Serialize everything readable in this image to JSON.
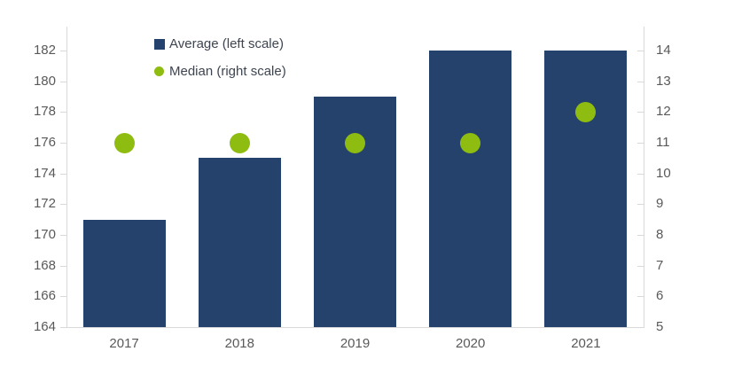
{
  "chart_data": {
    "type": "bar",
    "categories": [
      "2017",
      "2018",
      "2019",
      "2020",
      "2021"
    ],
    "series": [
      {
        "name": "Average (left scale)",
        "type": "bar",
        "axis": "left",
        "values": [
          171,
          175,
          179,
          182,
          182
        ],
        "color": "#24426b"
      },
      {
        "name": "Median (right scale)",
        "type": "scatter",
        "axis": "right",
        "values": [
          11,
          11,
          11,
          11,
          12
        ],
        "color": "#8fbc11"
      }
    ],
    "title": "",
    "xlabel": "",
    "ylabel": "",
    "left_axis": {
      "min": 164,
      "max": 182,
      "step": 2,
      "ticks": [
        164,
        166,
        168,
        170,
        172,
        174,
        176,
        178,
        180,
        182
      ]
    },
    "right_axis": {
      "min": 5,
      "max": 14,
      "step": 1,
      "ticks": [
        5,
        6,
        7,
        8,
        9,
        10,
        11,
        12,
        13,
        14
      ]
    },
    "grid": false,
    "legend_position": "top-left-inside"
  },
  "legend": {
    "items": [
      {
        "label": "Average (left scale)",
        "marker": "square",
        "color": "#24426b"
      },
      {
        "label": "Median (right scale)",
        "marker": "circle",
        "color": "#8fbc11"
      }
    ]
  },
  "colors": {
    "bar": "#24426b",
    "dot": "#8fbc11",
    "axis_line": "#d9d9d9",
    "tick": "#d9d9d9",
    "axis_label": "#595959",
    "legend_text": "#3e4551",
    "background": "#ffffff"
  }
}
